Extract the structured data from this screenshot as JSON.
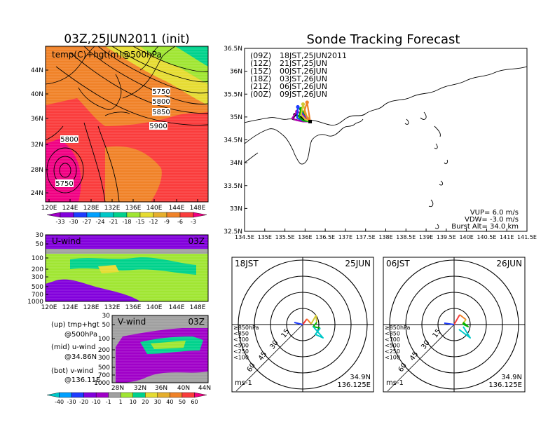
{
  "left_title": "03Z,25JUN2011 (init)",
  "main_title": "Sonde Tracking Forecast",
  "top_map": {
    "label": "temp(C)+hgt(m)@500hPa",
    "lat_labels": [
      "44N",
      "40N",
      "36N",
      "32N",
      "28N",
      "24N"
    ],
    "lon_labels": [
      "120E",
      "124E",
      "128E",
      "132E",
      "136E",
      "140E",
      "144E",
      "148E"
    ],
    "contour_labels": [
      "5750",
      "5800",
      "5850",
      "5900",
      "5800",
      "5750"
    ]
  },
  "temp_colorbar": {
    "labels": [
      "-33",
      "-30",
      "-27",
      "-24",
      "-21",
      "-18",
      "-15",
      "-12",
      "-9",
      "-6",
      "-3"
    ],
    "colors": [
      "#a000c8",
      "#8200dc",
      "#1e3cff",
      "#00a0ff",
      "#00c8c8",
      "#00d28c",
      "#a0e632",
      "#e6dc32",
      "#e6af2d",
      "#f08228",
      "#fa3c3c",
      "#f00082"
    ]
  },
  "u_wind": {
    "title": "U-wind",
    "time": "03Z",
    "pressure_labels": [
      "30",
      "50",
      "100",
      "200",
      "300",
      "500",
      "700",
      "1000"
    ],
    "lon_labels": [
      "120E",
      "124E",
      "128E",
      "132E",
      "136E",
      "140E",
      "144E",
      "148E"
    ]
  },
  "v_wind": {
    "title": "V-wind",
    "time": "03Z",
    "pressure_labels": [
      "30",
      "50",
      "100",
      "200",
      "300",
      "500",
      "700",
      "1000"
    ],
    "lat_labels": [
      "28N",
      "32N",
      "36N",
      "40N",
      "44N"
    ]
  },
  "side_notes": [
    {
      "line1": "(up)  tmp+hgt",
      "line2": "@500hPa"
    },
    {
      "line1": "(mid)  u-wind",
      "line2": "@34.86N"
    },
    {
      "line1": "(bot)  v-wind",
      "line2": "@136.11E"
    }
  ],
  "wind_colorbar": {
    "labels": [
      "-40",
      "-30",
      "-20",
      "-10",
      "-1",
      "1",
      "10",
      "20",
      "30",
      "40",
      "50",
      "60"
    ],
    "colors": [
      "#00c8c8",
      "#00a0ff",
      "#1e3cff",
      "#8200dc",
      "#a000c8",
      "#a0a0a0",
      "#a0e632",
      "#00d28c",
      "#e6dc32",
      "#e6af2d",
      "#f08228",
      "#fa3c3c",
      "#f00082"
    ]
  },
  "track_map": {
    "lat_labels": [
      "36.5N",
      "36N",
      "35.5N",
      "35N",
      "34.5N",
      "34N",
      "33.5N",
      "33N",
      "32.5N"
    ],
    "lon_labels": [
      "134.5E",
      "135E",
      "135.5E",
      "136E",
      "136.5E",
      "137E",
      "137.5E",
      "138E",
      "138.5E",
      "139E",
      "139.5E",
      "140E",
      "140.5E",
      "141E",
      "141.5E"
    ],
    "legend": [
      {
        "code": "(09Z)",
        "text": "18JST,25JUN2011",
        "color": "#000000"
      },
      {
        "code": "(12Z)",
        "text": "21JST,25JUN",
        "color": "#b400b4"
      },
      {
        "code": "(15Z)",
        "text": "00JST,26JUN",
        "color": "#1e3cff"
      },
      {
        "code": "(18Z)",
        "text": "03JST,26JUN",
        "color": "#00b400"
      },
      {
        "code": "(21Z)",
        "text": "06JST,26JUN",
        "color": "#d2c832"
      },
      {
        "code": "(00Z)",
        "text": "09JST,26JUN",
        "color": "#f08228"
      }
    ],
    "params": [
      "VUP=  6.0  m/s",
      "VDW=  -3.0  m/s",
      "Burst Alt=  34.0  km"
    ]
  },
  "hodographs": [
    {
      "time": "18JST",
      "date": "25JUN",
      "lat": "34.9N",
      "lon": "136.125E",
      "unit": "ms-1"
    },
    {
      "time": "06JST",
      "date": "26JUN",
      "lat": "34.9N",
      "lon": "136.125E",
      "unit": "ms-1"
    }
  ],
  "hodo_rings": [
    "15",
    "30",
    "45",
    "60"
  ],
  "hodo_levels": [
    {
      "label": "≥850hPa",
      "color": "#fa3c3c"
    },
    {
      "label": "<850",
      "color": "#f08228"
    },
    {
      "label": "<700",
      "color": "#d2c832"
    },
    {
      "label": "<500",
      "color": "#00b400"
    },
    {
      "label": "<250",
      "color": "#00c8c8"
    },
    {
      "label": "<100",
      "color": "#1e3cff"
    }
  ],
  "chart_data": [
    {
      "type": "heatmap",
      "title": "03Z,25JUN2011 (init)",
      "label": "temp(C)+hgt(m)@500hPa",
      "xlim": [
        120,
        150
      ],
      "ylim": [
        22,
        47
      ]
    },
    {
      "type": "heatmap",
      "title": "U-wind",
      "time": "03Z",
      "xlim": [
        120,
        150
      ],
      "y": "pressure hPa 1000-30"
    },
    {
      "type": "heatmap",
      "title": "V-wind",
      "time": "03Z",
      "xlim": [
        28,
        44
      ],
      "y": "pressure hPa 1000-30"
    },
    {
      "type": "line",
      "title": "Sonde Tracking Forecast",
      "xlim": [
        134.5,
        141.5
      ],
      "ylim": [
        32.5,
        36.5
      ],
      "launch": {
        "lon": 136.125,
        "lat": 34.9
      },
      "series": [
        {
          "name": "(09Z) 18JST,25JUN2011",
          "color": "#000000",
          "x": [
            136.125,
            136.0,
            135.85,
            135.7,
            135.75,
            135.9,
            136.0,
            136.125
          ],
          "y": [
            34.9,
            34.9,
            34.92,
            34.95,
            35.05,
            35.0,
            34.9,
            34.9
          ]
        },
        {
          "name": "(12Z) 21JST,25JUN",
          "color": "#b400b4",
          "x": [
            136.125,
            135.95,
            135.78,
            135.68,
            135.8,
            135.95,
            136.05,
            136.125
          ],
          "y": [
            34.9,
            34.9,
            34.93,
            34.97,
            35.12,
            35.05,
            34.95,
            34.9
          ]
        },
        {
          "name": "(15Z) 00JST,26JUN",
          "color": "#1e3cff",
          "x": [
            136.125,
            135.95,
            135.8,
            135.82,
            135.95,
            136.08,
            136.125
          ],
          "y": [
            34.9,
            34.92,
            34.98,
            35.22,
            35.08,
            34.95,
            34.9
          ]
        },
        {
          "name": "(18Z) 03JST,26JUN",
          "color": "#00b400",
          "x": [
            136.125,
            135.95,
            135.85,
            135.9,
            136.0,
            136.1,
            136.125
          ],
          "y": [
            34.9,
            34.92,
            35.0,
            35.18,
            35.05,
            34.95,
            34.9
          ]
        },
        {
          "name": "(21Z) 06JST,26JUN",
          "color": "#d2c832",
          "x": [
            136.125,
            136.0,
            135.9,
            135.95,
            136.05,
            136.125
          ],
          "y": [
            34.9,
            34.95,
            35.05,
            35.28,
            35.0,
            34.9
          ]
        },
        {
          "name": "(00Z) 09JST,26JUN",
          "color": "#f08228",
          "x": [
            136.125,
            136.05,
            135.98,
            136.05,
            136.1,
            136.125
          ],
          "y": [
            34.9,
            34.98,
            35.12,
            35.32,
            35.05,
            34.9
          ]
        }
      ],
      "params": {
        "VUP_m_s": 6.0,
        "VDW_m_s": -3.0,
        "burst_alt_km": 34.0
      }
    }
  ]
}
